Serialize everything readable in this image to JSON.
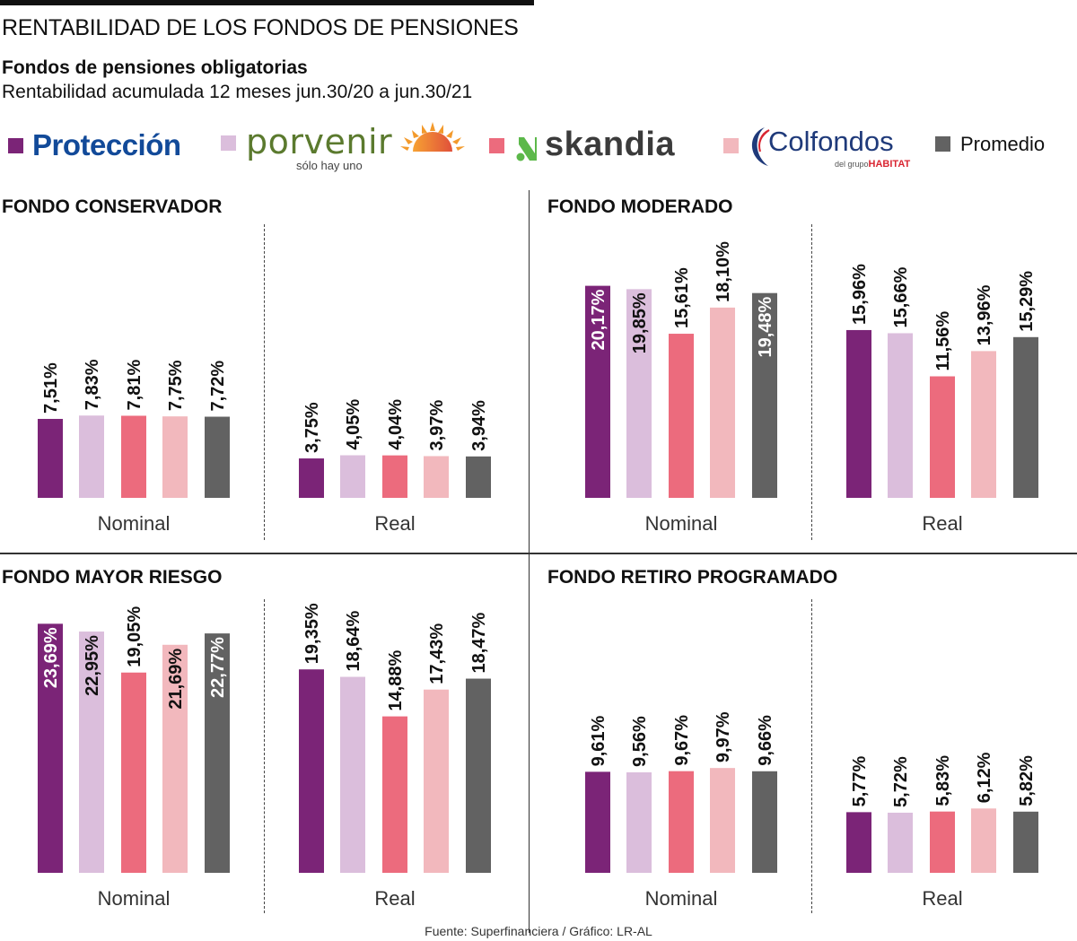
{
  "header": {
    "title": "RENTABILIDAD DE LOS FONDOS DE PENSIONES",
    "subtitle": "Fondos de pensiones obligatorias",
    "subtitle2": "Rentabilidad acumulada 12 meses jun.30/20 a jun.30/21"
  },
  "legend": {
    "items": [
      {
        "name": "Protección",
        "color": "#7b2477"
      },
      {
        "name": "Porvenir",
        "tagline": "sólo hay uno",
        "color": "#dbbedc"
      },
      {
        "name": "Skandia",
        "color": "#ec6b7d"
      },
      {
        "name": "Colfondos",
        "tagline_prefix": "del grupo",
        "tagline_brand": "HABITAT",
        "color": "#f2b8bd"
      },
      {
        "name": "Promedio",
        "color": "#626262"
      }
    ],
    "protection_logo": "Protección",
    "porvenir_logo": "porvenir",
    "skandia_logo": "skandia",
    "colfondos_logo": "Colfondos"
  },
  "chart_data": [
    {
      "type": "bar",
      "title": "FONDO CONSERVADOR",
      "categories": [
        "Protección",
        "Porvenir",
        "Skandia",
        "Colfondos",
        "Promedio"
      ],
      "groups": [
        {
          "name": "Nominal",
          "values": [
            7.51,
            7.83,
            7.81,
            7.75,
            7.72
          ],
          "labels": [
            "7,51%",
            "7,83%",
            "7,81%",
            "7,75%",
            "7,72%"
          ]
        },
        {
          "name": "Real",
          "values": [
            3.75,
            4.05,
            4.04,
            3.97,
            3.94
          ],
          "labels": [
            "3,75%",
            "4,05%",
            "4,04%",
            "3,97%",
            "3,94%"
          ]
        }
      ],
      "ylabel": "",
      "xlabel": "",
      "grid": false
    },
    {
      "type": "bar",
      "title": "FONDO MODERADO",
      "categories": [
        "Protección",
        "Porvenir",
        "Skandia",
        "Colfondos",
        "Promedio"
      ],
      "groups": [
        {
          "name": "Nominal",
          "values": [
            20.17,
            19.85,
            15.61,
            18.1,
            19.48
          ],
          "labels": [
            "20,17%",
            "19,85%",
            "15,61%",
            "18,10%",
            "19,48%"
          ]
        },
        {
          "name": "Real",
          "values": [
            15.96,
            15.66,
            11.56,
            13.96,
            15.29
          ],
          "labels": [
            "15,96%",
            "15,66%",
            "11,56%",
            "13,96%",
            "15,29%"
          ]
        }
      ],
      "ylabel": "",
      "xlabel": "",
      "grid": false
    },
    {
      "type": "bar",
      "title": "FONDO MAYOR RIESGO",
      "categories": [
        "Protección",
        "Porvenir",
        "Skandia",
        "Colfondos",
        "Promedio"
      ],
      "groups": [
        {
          "name": "Nominal",
          "values": [
            23.69,
            22.95,
            19.05,
            21.69,
            22.77
          ],
          "labels": [
            "23,69%",
            "22,95%",
            "19,05%",
            "21,69%",
            "22,77%"
          ]
        },
        {
          "name": "Real",
          "values": [
            19.35,
            18.64,
            14.88,
            17.43,
            18.47
          ],
          "labels": [
            "19,35%",
            "18,64%",
            "14,88%",
            "17,43%",
            "18,47%"
          ]
        }
      ],
      "ylabel": "",
      "xlabel": "",
      "grid": false
    },
    {
      "type": "bar",
      "title": "FONDO RETIRO PROGRAMADO",
      "categories": [
        "Protección",
        "Porvenir",
        "Skandia",
        "Colfondos",
        "Promedio"
      ],
      "groups": [
        {
          "name": "Nominal",
          "values": [
            9.61,
            9.56,
            9.67,
            9.97,
            9.66
          ],
          "labels": [
            "9,61%",
            "9,56%",
            "9,67%",
            "9,97%",
            "9,66%"
          ]
        },
        {
          "name": "Real",
          "values": [
            5.77,
            5.72,
            5.83,
            6.12,
            5.82
          ],
          "labels": [
            "5,77%",
            "5,72%",
            "5,83%",
            "6,12%",
            "5,82%"
          ]
        }
      ],
      "ylabel": "",
      "xlabel": "",
      "grid": false
    }
  ],
  "footer": {
    "source": "Fuente: Superfinanciera / Gráfico: LR-AL"
  }
}
